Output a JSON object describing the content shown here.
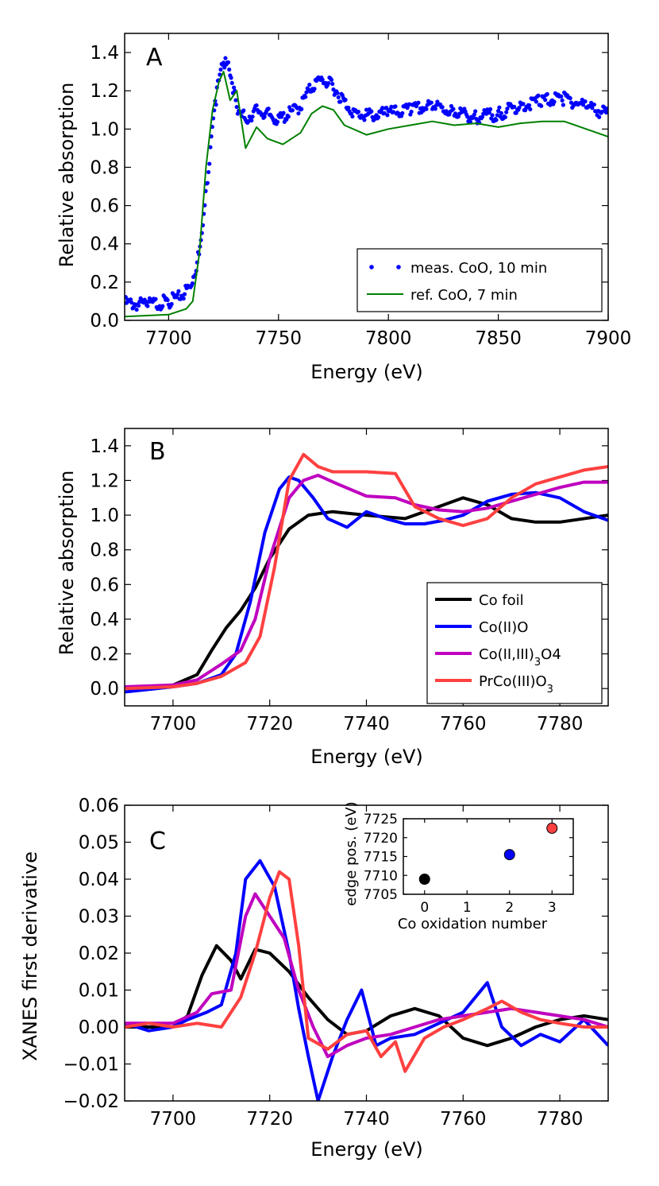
{
  "chart_data": [
    {
      "panel": "A",
      "type": "line",
      "xlabel": "Energy (eV)",
      "ylabel": "Relative absorption",
      "xlim": [
        7680,
        7900
      ],
      "ylim": [
        0.0,
        1.5
      ],
      "xticks": [
        "7700",
        "7750",
        "7800",
        "7850",
        "7900"
      ],
      "yticks": [
        "0.0",
        "0.2",
        "0.4",
        "0.6",
        "0.8",
        "1.0",
        "1.2",
        "1.4"
      ],
      "legend_position": "lower-right",
      "series": [
        {
          "name": "meas. CoO, 10 min",
          "style": "dots",
          "color": "#0000ff",
          "x": [
            7680,
            7690,
            7700,
            7705,
            7710,
            7713,
            7716,
            7719,
            7722,
            7725,
            7728,
            7731,
            7735,
            7740,
            7745,
            7750,
            7755,
            7760,
            7765,
            7770,
            7775,
            7780,
            7785,
            7790,
            7800,
            7810,
            7820,
            7830,
            7840,
            7850,
            7860,
            7870,
            7880,
            7890,
            7900
          ],
          "y": [
            0.09,
            0.08,
            0.1,
            0.12,
            0.18,
            0.3,
            0.55,
            0.9,
            1.2,
            1.35,
            1.3,
            1.12,
            1.05,
            1.1,
            1.08,
            1.05,
            1.08,
            1.12,
            1.22,
            1.26,
            1.22,
            1.14,
            1.08,
            1.07,
            1.08,
            1.1,
            1.12,
            1.09,
            1.06,
            1.08,
            1.12,
            1.15,
            1.16,
            1.12,
            1.08
          ]
        },
        {
          "name": "ref. CoO, 7 min",
          "style": "line",
          "color": "#008000",
          "x": [
            7680,
            7700,
            7708,
            7711,
            7714,
            7717,
            7720,
            7723,
            7725,
            7728,
            7731,
            7735,
            7740,
            7745,
            7752,
            7760,
            7765,
            7770,
            7775,
            7780,
            7790,
            7800,
            7810,
            7820,
            7830,
            7840,
            7850,
            7860,
            7870,
            7880,
            7890,
            7900
          ],
          "y": [
            0.02,
            0.03,
            0.06,
            0.1,
            0.35,
            0.8,
            1.1,
            1.25,
            1.3,
            1.15,
            1.2,
            0.9,
            1.01,
            0.95,
            0.92,
            0.98,
            1.08,
            1.12,
            1.1,
            1.02,
            0.97,
            1.0,
            1.02,
            1.04,
            1.02,
            1.03,
            1.01,
            1.03,
            1.04,
            1.04,
            1.0,
            0.96
          ]
        }
      ]
    },
    {
      "panel": "B",
      "type": "line",
      "xlabel": "Energy (eV)",
      "ylabel": "Relative absorption",
      "xlim": [
        7690,
        7790
      ],
      "ylim": [
        -0.1,
        1.5
      ],
      "xticks": [
        "7700",
        "7720",
        "7740",
        "7760",
        "7780"
      ],
      "yticks": [
        "0.0",
        "0.2",
        "0.4",
        "0.6",
        "0.8",
        "1.0",
        "1.2",
        "1.4"
      ],
      "legend_position": "lower-right",
      "series": [
        {
          "name": "Co foil",
          "color": "#000000",
          "x": [
            7690,
            7700,
            7705,
            7708,
            7711,
            7714,
            7717,
            7720,
            7724,
            7728,
            7733,
            7740,
            7748,
            7755,
            7760,
            7765,
            7770,
            7775,
            7780,
            7790
          ],
          "y": [
            0.0,
            0.02,
            0.08,
            0.22,
            0.35,
            0.45,
            0.58,
            0.75,
            0.92,
            1.0,
            1.02,
            1.0,
            0.98,
            1.05,
            1.1,
            1.06,
            0.98,
            0.96,
            0.96,
            1.0
          ]
        },
        {
          "name": "Co(II)O",
          "color": "#0000ff",
          "x": [
            7690,
            7700,
            7705,
            7710,
            7713,
            7716,
            7719,
            7722,
            7724,
            7726,
            7729,
            7732,
            7736,
            7740,
            7744,
            7748,
            7752,
            7756,
            7760,
            7765,
            7770,
            7775,
            7780,
            7785,
            7790
          ],
          "y": [
            -0.02,
            0.01,
            0.03,
            0.08,
            0.2,
            0.5,
            0.9,
            1.15,
            1.22,
            1.2,
            1.1,
            0.98,
            0.93,
            1.02,
            0.98,
            0.95,
            0.95,
            0.97,
            1.0,
            1.08,
            1.12,
            1.13,
            1.1,
            1.02,
            0.97
          ]
        },
        {
          "name": "Co(II,III)3O4",
          "color": "#bf00bf",
          "x": [
            7690,
            7700,
            7705,
            7710,
            7714,
            7717,
            7720,
            7724,
            7727,
            7730,
            7734,
            7740,
            7746,
            7750,
            7755,
            7760,
            7765,
            7770,
            7775,
            7780,
            7785,
            7790
          ],
          "y": [
            0.01,
            0.02,
            0.05,
            0.14,
            0.22,
            0.4,
            0.75,
            1.1,
            1.2,
            1.23,
            1.18,
            1.11,
            1.1,
            1.06,
            1.03,
            1.02,
            1.04,
            1.08,
            1.12,
            1.16,
            1.19,
            1.19
          ]
        },
        {
          "name": "PrCo(III)O3",
          "color": "#ff4040",
          "x": [
            7690,
            7700,
            7705,
            7710,
            7715,
            7718,
            7721,
            7724,
            7727,
            7730,
            7733,
            7740,
            7746,
            7750,
            7755,
            7760,
            7765,
            7770,
            7775,
            7780,
            7785,
            7790
          ],
          "y": [
            0.0,
            0.01,
            0.03,
            0.07,
            0.15,
            0.3,
            0.7,
            1.2,
            1.35,
            1.28,
            1.25,
            1.25,
            1.24,
            1.05,
            0.98,
            0.94,
            0.98,
            1.1,
            1.18,
            1.22,
            1.26,
            1.28
          ]
        }
      ]
    },
    {
      "panel": "C",
      "type": "line",
      "xlabel": "Energy (eV)",
      "ylabel": "XANES first derivative",
      "xlim": [
        7690,
        7790
      ],
      "ylim": [
        -0.02,
        0.06
      ],
      "xticks": [
        "7700",
        "7720",
        "7740",
        "7760",
        "7780"
      ],
      "yticks": [
        "−0.02",
        "−0.01",
        "0.00",
        "0.01",
        "0.02",
        "0.03",
        "0.04",
        "0.05",
        "0.06"
      ],
      "series": [
        {
          "name": "Co foil",
          "color": "#000000",
          "x": [
            7690,
            7700,
            7703,
            7706,
            7709,
            7712,
            7714,
            7717,
            7720,
            7724,
            7728,
            7732,
            7736,
            7740,
            7745,
            7750,
            7755,
            7760,
            7765,
            7770,
            7775,
            7780,
            7785,
            7790
          ],
          "y": [
            0.0,
            0.0,
            0.003,
            0.014,
            0.022,
            0.018,
            0.013,
            0.021,
            0.02,
            0.015,
            0.008,
            0.002,
            -0.002,
            -0.001,
            0.003,
            0.005,
            0.003,
            -0.003,
            -0.005,
            -0.003,
            0.0,
            0.002,
            0.003,
            0.002
          ]
        },
        {
          "name": "Co(II)O",
          "color": "#0000ff",
          "x": [
            7690,
            7695,
            7700,
            7703,
            7707,
            7710,
            7713,
            7715,
            7718,
            7721,
            7724,
            7726,
            7728,
            7730,
            7733,
            7736,
            7739,
            7742,
            7745,
            7750,
            7755,
            7760,
            7765,
            7768,
            7772,
            7776,
            7780,
            7785,
            7790
          ],
          "y": [
            0.001,
            -0.001,
            0.0,
            0.002,
            0.004,
            0.006,
            0.02,
            0.04,
            0.045,
            0.038,
            0.02,
            0.005,
            -0.008,
            -0.02,
            -0.008,
            0.002,
            0.01,
            -0.005,
            -0.003,
            -0.002,
            0.001,
            0.004,
            0.012,
            0.0,
            -0.005,
            -0.002,
            -0.004,
            0.002,
            -0.005
          ]
        },
        {
          "name": "Co(II,III)3O4",
          "color": "#bf00bf",
          "x": [
            7690,
            7700,
            7705,
            7708,
            7712,
            7715,
            7717,
            7720,
            7723,
            7726,
            7729,
            7732,
            7736,
            7740,
            7745,
            7750,
            7755,
            7760,
            7765,
            7770,
            7775,
            7780,
            7785,
            7790
          ],
          "y": [
            0.001,
            0.001,
            0.004,
            0.009,
            0.01,
            0.03,
            0.036,
            0.03,
            0.024,
            0.01,
            0.0,
            -0.008,
            -0.005,
            -0.003,
            -0.002,
            0.0,
            0.002,
            0.003,
            0.004,
            0.005,
            0.004,
            0.003,
            0.002,
            0.0
          ]
        },
        {
          "name": "PrCo(III)O3",
          "color": "#ff4040",
          "x": [
            7690,
            7695,
            7700,
            7705,
            7710,
            7714,
            7717,
            7720,
            7722,
            7724,
            7726,
            7728,
            7732,
            7736,
            7740,
            7743,
            7746,
            7748,
            7752,
            7756,
            7760,
            7765,
            7768,
            7772,
            7776,
            7780,
            7785,
            7790
          ],
          "y": [
            0.0,
            0.001,
            0.0,
            0.001,
            0.0,
            0.008,
            0.02,
            0.035,
            0.042,
            0.04,
            0.022,
            -0.003,
            -0.006,
            -0.002,
            -0.001,
            -0.008,
            -0.004,
            -0.012,
            -0.003,
            0.0,
            0.002,
            0.005,
            0.007,
            0.004,
            0.002,
            0.001,
            0.0,
            0.0
          ]
        }
      ],
      "inset": {
        "type": "scatter",
        "xlabel": "Co oxidation number",
        "ylabel": "edge pos. (eV)",
        "xlim": [
          -0.5,
          3.5
        ],
        "ylim": [
          7705,
          7725
        ],
        "xticks": [
          "0",
          "1",
          "2",
          "3"
        ],
        "yticks": [
          "7705",
          "7710",
          "7715",
          "7720",
          "7725"
        ],
        "points": [
          {
            "x": 0,
            "y": 7709,
            "color": "#000000"
          },
          {
            "x": 2,
            "y": 7715.5,
            "color": "#0000ff"
          },
          {
            "x": 3,
            "y": 7722.5,
            "color": "#ff4040"
          }
        ]
      }
    }
  ]
}
